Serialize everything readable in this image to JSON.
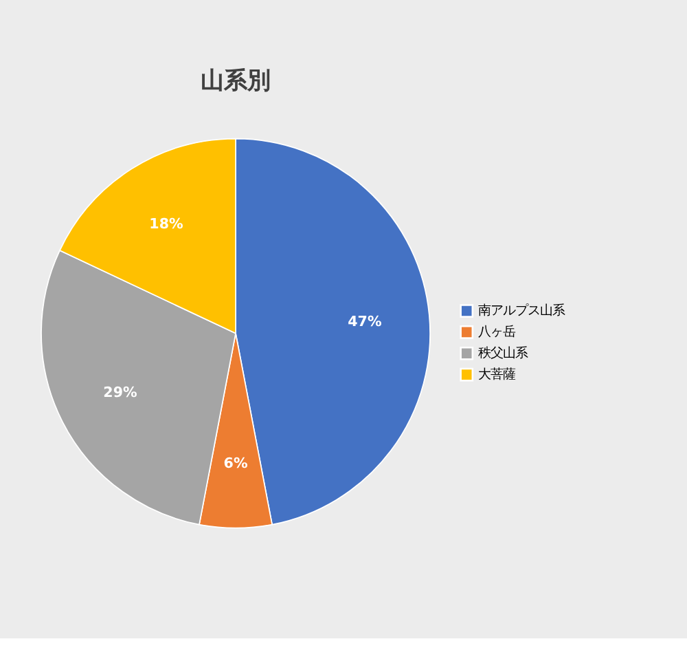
{
  "chart_data": {
    "type": "pie",
    "title": "山系別",
    "categories": [
      "南アルプス山系",
      "八ヶ岳",
      "秩父山系",
      "大菩薩"
    ],
    "values": [
      47,
      6,
      29,
      18
    ],
    "colors": [
      "#4472c4",
      "#ed7d31",
      "#a5a5a5",
      "#ffc000"
    ],
    "value_labels": [
      "47%",
      "6%",
      "29%",
      "18%"
    ],
    "legend": "right"
  }
}
